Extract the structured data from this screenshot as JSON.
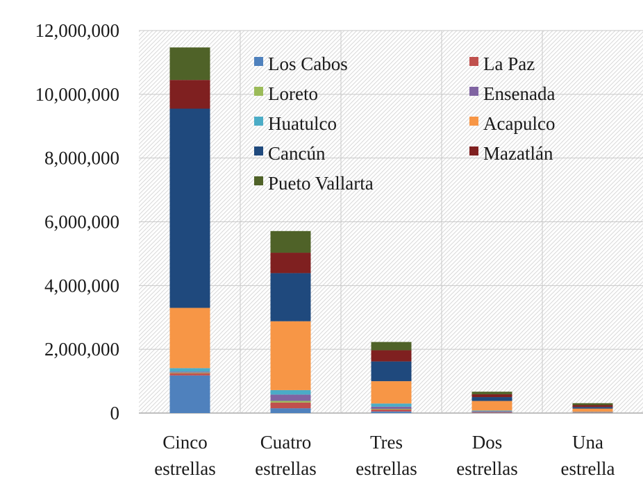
{
  "chart_data": {
    "type": "bar",
    "stacked": true,
    "title": "",
    "xlabel": "",
    "ylabel": "",
    "ylim": [
      0,
      12000000
    ],
    "yticks": [
      "0",
      "2,000,000",
      "4,000,000",
      "6,000,000",
      "8,000,000",
      "10,000,000",
      "12,000,000"
    ],
    "ytick_values": [
      0,
      2000000,
      4000000,
      6000000,
      8000000,
      10000000,
      12000000
    ],
    "grid": true,
    "legend_position": "top-right",
    "categories": [
      [
        "Cinco",
        "estrellas"
      ],
      [
        "Cuatro",
        "estrellas"
      ],
      [
        "Tres",
        "estrellas"
      ],
      [
        "Dos",
        "estrellas"
      ],
      [
        "Una",
        "estrella"
      ]
    ],
    "series": [
      {
        "name": "Los Cabos",
        "color": "#4f81bd",
        "values": [
          1180000,
          150000,
          50000,
          10000,
          5000
        ]
      },
      {
        "name": "La Paz",
        "color": "#c0504d",
        "values": [
          70000,
          180000,
          60000,
          20000,
          10000
        ]
      },
      {
        "name": "Loreto",
        "color": "#9bbb59",
        "values": [
          20000,
          50000,
          20000,
          5000,
          5000
        ]
      },
      {
        "name": "Ensenada",
        "color": "#8064a2",
        "values": [
          30000,
          200000,
          70000,
          20000,
          10000
        ]
      },
      {
        "name": "Huatulco",
        "color": "#4bacc6",
        "values": [
          110000,
          140000,
          100000,
          25000,
          10000
        ]
      },
      {
        "name": "Acapulco",
        "color": "#f79646",
        "values": [
          1890000,
          2160000,
          700000,
          300000,
          100000
        ]
      },
      {
        "name": "Cancún",
        "color": "#1f497d",
        "values": [
          6250000,
          1510000,
          620000,
          120000,
          50000
        ]
      },
      {
        "name": "Mazatlán",
        "color": "#7f2020",
        "values": [
          900000,
          640000,
          350000,
          90000,
          60000
        ]
      },
      {
        "name": "Pueto Vallarta",
        "color": "#4f6228",
        "values": [
          1020000,
          680000,
          260000,
          80000,
          60000
        ]
      }
    ]
  }
}
